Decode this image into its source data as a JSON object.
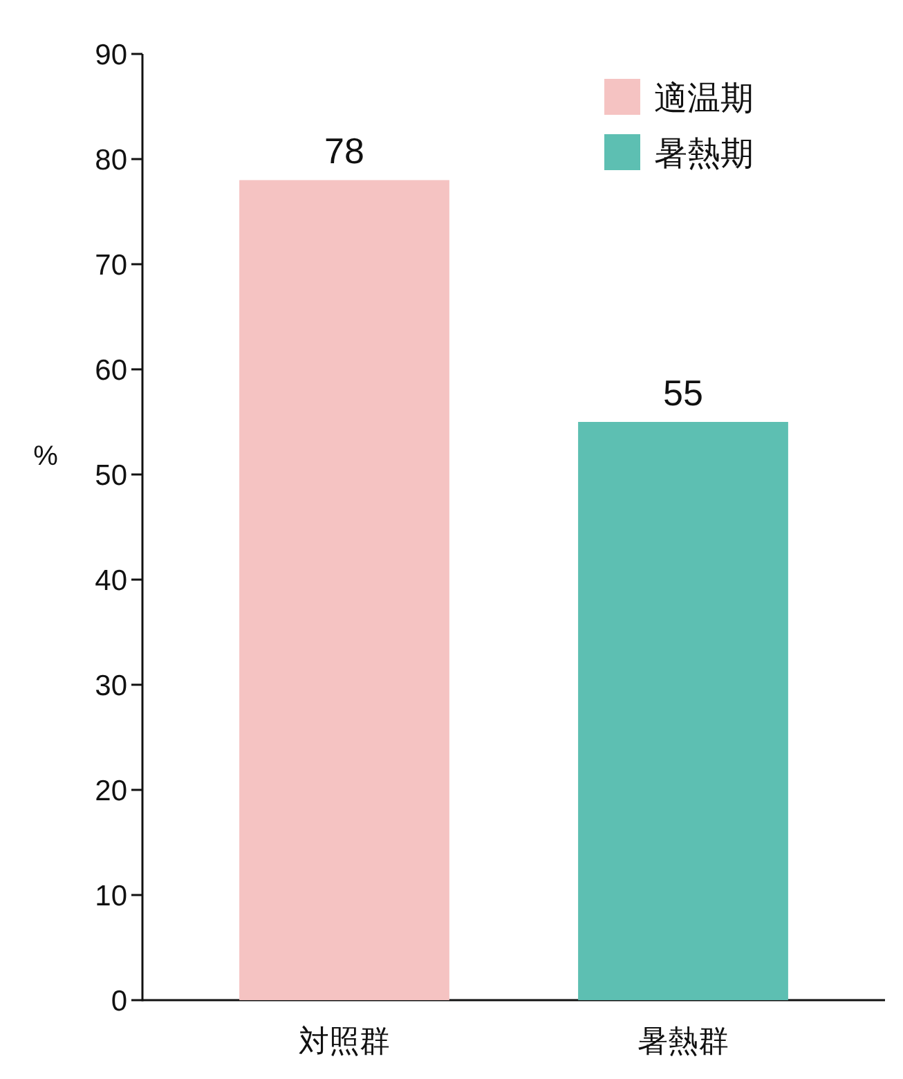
{
  "chart_data": {
    "type": "bar",
    "categories": [
      "対照群",
      "暑熱群"
    ],
    "series": [
      {
        "name": "適温期",
        "color": "#f5c3c2",
        "values": [
          78,
          null
        ]
      },
      {
        "name": "暑熱期",
        "color": "#5dbfb2",
        "values": [
          null,
          55
        ]
      }
    ],
    "ylabel": "%",
    "ylim": [
      0,
      90
    ],
    "yticks": [
      0,
      10,
      20,
      30,
      40,
      50,
      60,
      70,
      80,
      90
    ],
    "data_labels": true,
    "legend": "top right"
  }
}
